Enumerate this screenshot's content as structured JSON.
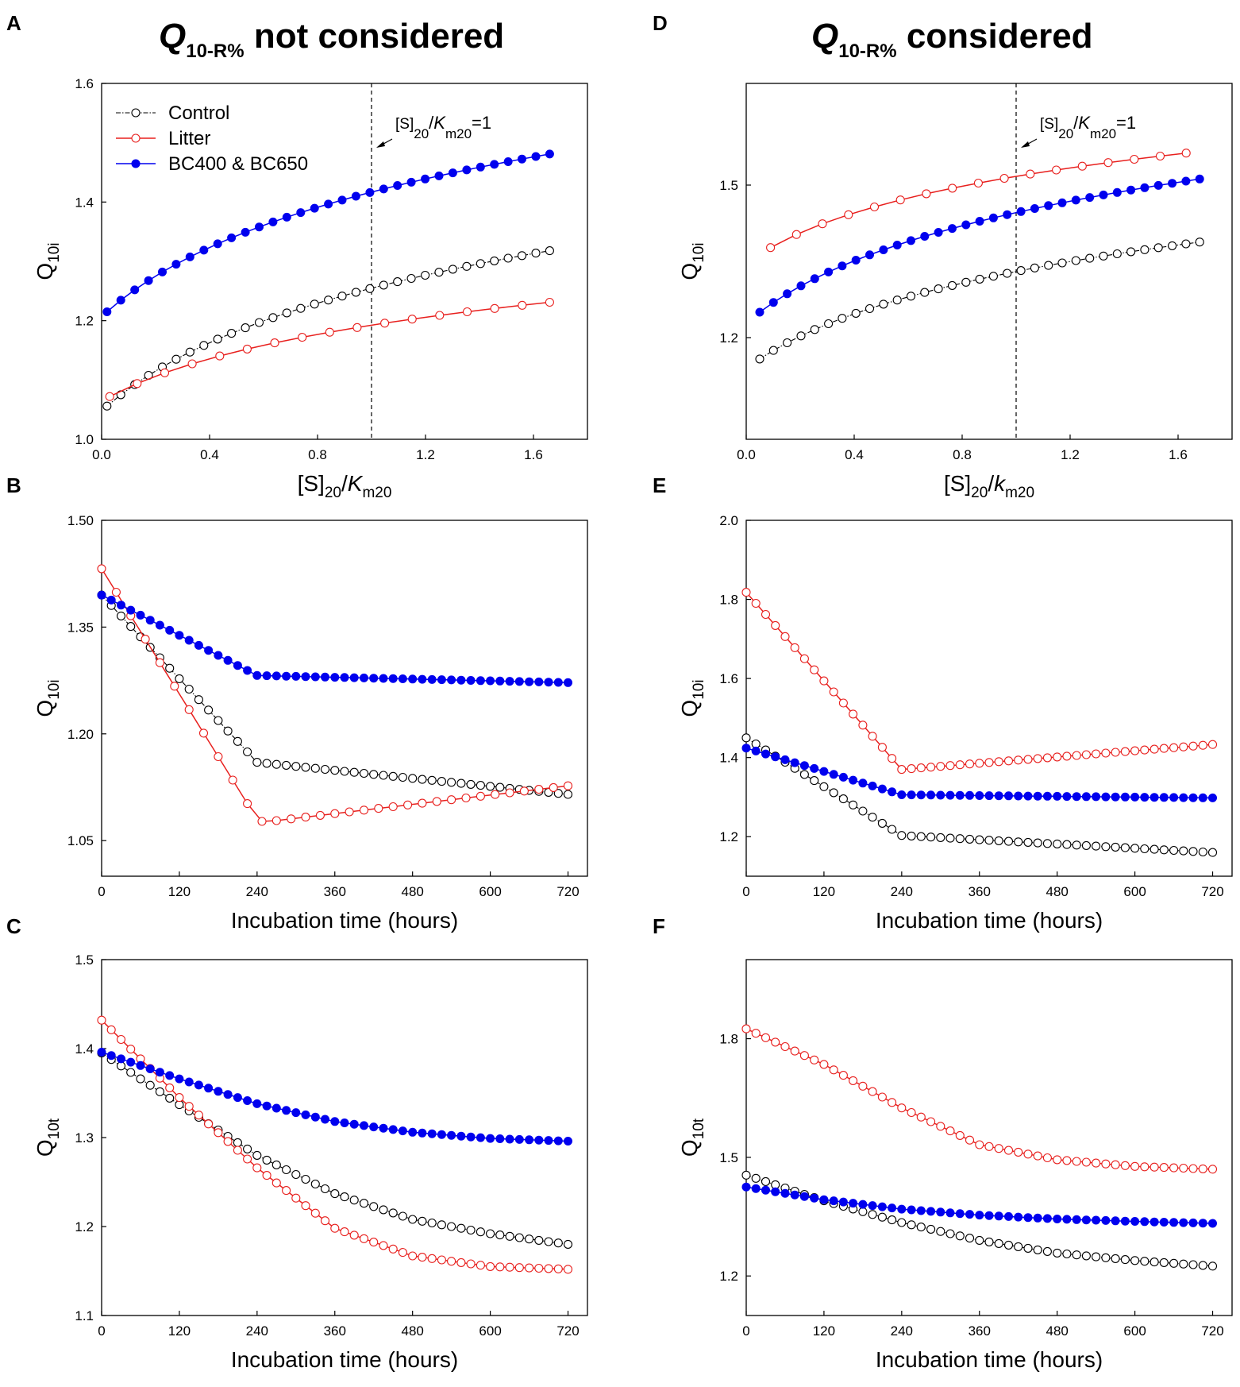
{
  "titles": {
    "left": {
      "q": "Q",
      "sub": "10-R%",
      "rest": " not considered"
    },
    "right": {
      "q": "Q",
      "sub": "10-R%",
      "rest": " considered"
    }
  },
  "legend": {
    "control": "Control",
    "litter": "Litter",
    "bc": "BC400 & BC650"
  },
  "colors": {
    "control": "#000000",
    "litter": "#e8201e",
    "bc": "#0000ee"
  },
  "annotation": {
    "prefix": "[S]",
    "s1": "20",
    "mid": "/",
    "k": "K",
    "s2": "m20",
    "suffix": "=1"
  },
  "xlabels": {
    "a": {
      "pre": "[S]",
      "s1": "20",
      "mid": "/",
      "k": "K",
      "s2": "m20"
    },
    "d": {
      "pre": "[S]",
      "s1": "20",
      "mid": "/",
      "k": "k",
      "s2": "m20"
    },
    "time": "Incubation time (hours)"
  },
  "ylabels": {
    "q10i": {
      "q": "Q",
      "sub": "10i"
    },
    "q10t": {
      "q": "Q",
      "sub": "10t"
    }
  },
  "chart_data": [
    {
      "panel": "A",
      "type": "line",
      "xlim": [
        0,
        1.8
      ],
      "ylim": [
        1.0,
        1.6
      ],
      "xticks": [
        "0.0",
        "0.4",
        "0.8",
        "1.2",
        "1.6"
      ],
      "xtick_values": [
        0,
        0.4,
        0.8,
        1.2,
        1.6
      ],
      "yticks": [
        "1.0",
        "1.2",
        "1.4",
        "1.6"
      ],
      "ytick_values": [
        1.0,
        1.2,
        1.4,
        1.6
      ],
      "vline": 1.0,
      "series": [
        {
          "name": "Control",
          "key": "control",
          "x0": 0.02,
          "x1": 1.66,
          "n": 33,
          "y0": 1.056,
          "y1": 1.318,
          "curve": "log",
          "k": 4
        },
        {
          "name": "Litter",
          "key": "litter",
          "x0": 0.03,
          "x1": 1.66,
          "n": 17,
          "y0": 1.072,
          "y1": 1.231,
          "curve": "log",
          "k": 4
        },
        {
          "name": "BC400 & BC650",
          "key": "bc",
          "x0": 0.02,
          "x1": 1.66,
          "n": 33,
          "y0": 1.215,
          "y1": 1.481,
          "curve": "log",
          "k": 4
        }
      ]
    },
    {
      "panel": "D",
      "type": "line",
      "xlim": [
        0,
        1.8
      ],
      "ylim": [
        1.0,
        1.7
      ],
      "xticks": [
        "0.0",
        "0.4",
        "0.8",
        "1.2",
        "1.6"
      ],
      "xtick_values": [
        0,
        0.4,
        0.8,
        1.2,
        1.6
      ],
      "yticks": [
        "1.2",
        "1.5"
      ],
      "ytick_values": [
        1.2,
        1.5
      ],
      "vline": 1.0,
      "series": [
        {
          "name": "Control",
          "key": "control",
          "x0": 0.05,
          "x1": 1.68,
          "n": 33,
          "y0": 1.158,
          "y1": 1.388,
          "curve": "log",
          "k": 4
        },
        {
          "name": "Litter",
          "key": "litter",
          "x0": 0.09,
          "x1": 1.63,
          "n": 17,
          "y0": 1.377,
          "y1": 1.563,
          "curve": "log",
          "k": 4
        },
        {
          "name": "BC400 & BC650",
          "key": "bc",
          "x0": 0.05,
          "x1": 1.68,
          "n": 33,
          "y0": 1.25,
          "y1": 1.512,
          "curve": "log",
          "k": 4
        }
      ]
    },
    {
      "panel": "B",
      "type": "line",
      "xlim": [
        0,
        750
      ],
      "ylim": [
        1.0,
        1.5
      ],
      "xticks": [
        "0",
        "120",
        "240",
        "360",
        "480",
        "600",
        "720"
      ],
      "xtick_values": [
        0,
        120,
        240,
        360,
        480,
        600,
        720
      ],
      "yticks": [
        "1.05",
        "1.20",
        "1.35",
        "1.50"
      ],
      "ytick_values": [
        1.05,
        1.2,
        1.35,
        1.5
      ],
      "series": [
        {
          "name": "Control",
          "key": "control",
          "n": 49,
          "dx": 15,
          "knots": [
            [
              0,
              1.395
            ],
            [
              240,
              1.16
            ],
            [
              720,
              1.115
            ]
          ]
        },
        {
          "name": "Litter",
          "key": "litter",
          "n": 33,
          "dx": 22.5,
          "knots": [
            [
              0,
              1.432
            ],
            [
              240,
              1.08
            ],
            [
              250,
              1.076
            ],
            [
              720,
              1.127
            ]
          ]
        },
        {
          "name": "BC400 & BC650",
          "key": "bc",
          "n": 49,
          "dx": 15,
          "knots": [
            [
              0,
              1.395
            ],
            [
              240,
              1.282
            ],
            [
              720,
              1.272
            ]
          ]
        }
      ]
    },
    {
      "panel": "E",
      "type": "line",
      "xlim": [
        0,
        750
      ],
      "ylim": [
        1.1,
        2.0
      ],
      "xticks": [
        "0",
        "120",
        "240",
        "360",
        "480",
        "600",
        "720"
      ],
      "xtick_values": [
        0,
        120,
        240,
        360,
        480,
        600,
        720
      ],
      "yticks": [
        "1.2",
        "1.4",
        "1.6",
        "1.8",
        "2.0"
      ],
      "ytick_values": [
        1.2,
        1.4,
        1.6,
        1.8,
        2.0
      ],
      "series": [
        {
          "name": "Control",
          "key": "control",
          "n": 49,
          "dx": 15,
          "knots": [
            [
              0,
              1.45
            ],
            [
              240,
              1.203
            ],
            [
              720,
              1.16
            ]
          ]
        },
        {
          "name": "Litter",
          "key": "litter",
          "n": 49,
          "dx": 15,
          "knots": [
            [
              0,
              1.818
            ],
            [
              240,
              1.37
            ],
            [
              720,
              1.433
            ]
          ]
        },
        {
          "name": "BC400 & BC650",
          "key": "bc",
          "n": 49,
          "dx": 15,
          "knots": [
            [
              0,
              1.424
            ],
            [
              240,
              1.306
            ],
            [
              720,
              1.298
            ]
          ]
        }
      ]
    },
    {
      "panel": "C",
      "type": "line",
      "xlim": [
        0,
        750
      ],
      "ylim": [
        1.1,
        1.5
      ],
      "xticks": [
        "0",
        "120",
        "240",
        "360",
        "480",
        "600",
        "720"
      ],
      "xtick_values": [
        0,
        120,
        240,
        360,
        480,
        600,
        720
      ],
      "yticks": [
        "1.1",
        "1.2",
        "1.3",
        "1.4",
        "1.5"
      ],
      "ytick_values": [
        1.1,
        1.2,
        1.3,
        1.4,
        1.5
      ],
      "series": [
        {
          "name": "Control",
          "key": "control",
          "n": 49,
          "dx": 15,
          "knots": [
            [
              0,
              1.395
            ],
            [
              120,
              1.337
            ],
            [
              240,
              1.28
            ],
            [
              360,
              1.237
            ],
            [
              480,
              1.208
            ],
            [
              600,
              1.192
            ],
            [
              720,
              1.18
            ]
          ]
        },
        {
          "name": "Litter",
          "key": "litter",
          "n": 49,
          "dx": 15,
          "knots": [
            [
              0,
              1.432
            ],
            [
              120,
              1.345
            ],
            [
              240,
              1.266
            ],
            [
              360,
              1.198
            ],
            [
              480,
              1.167
            ],
            [
              600,
              1.155
            ],
            [
              720,
              1.152
            ]
          ]
        },
        {
          "name": "BC400 & BC650",
          "key": "bc",
          "n": 49,
          "dx": 15,
          "knots": [
            [
              0,
              1.396
            ],
            [
              120,
              1.366
            ],
            [
              240,
              1.338
            ],
            [
              360,
              1.318
            ],
            [
              480,
              1.306
            ],
            [
              600,
              1.299
            ],
            [
              720,
              1.296
            ]
          ]
        }
      ]
    },
    {
      "panel": "F",
      "type": "line",
      "xlim": [
        0,
        750
      ],
      "ylim": [
        1.1,
        2.0
      ],
      "xticks": [
        "0",
        "120",
        "240",
        "360",
        "480",
        "600",
        "720"
      ],
      "xtick_values": [
        0,
        120,
        240,
        360,
        480,
        600,
        720
      ],
      "yticks": [
        "1.2",
        "1.5",
        "1.8"
      ],
      "ytick_values": [
        1.2,
        1.5,
        1.8
      ],
      "series": [
        {
          "name": "Control",
          "key": "control",
          "n": 49,
          "dx": 15,
          "knots": [
            [
              0,
              1.455
            ],
            [
              120,
              1.39
            ],
            [
              240,
              1.335
            ],
            [
              360,
              1.29
            ],
            [
              480,
              1.258
            ],
            [
              600,
              1.239
            ],
            [
              720,
              1.225
            ]
          ]
        },
        {
          "name": "Litter",
          "key": "litter",
          "n": 49,
          "dx": 15,
          "knots": [
            [
              0,
              1.825
            ],
            [
              120,
              1.735
            ],
            [
              240,
              1.625
            ],
            [
              360,
              1.532
            ],
            [
              480,
              1.494
            ],
            [
              600,
              1.477
            ],
            [
              720,
              1.47
            ]
          ]
        },
        {
          "name": "BC400 & BC650",
          "key": "bc",
          "n": 49,
          "dx": 15,
          "knots": [
            [
              0,
              1.425
            ],
            [
              120,
              1.393
            ],
            [
              240,
              1.369
            ],
            [
              360,
              1.354
            ],
            [
              480,
              1.344
            ],
            [
              600,
              1.338
            ],
            [
              720,
              1.333
            ]
          ]
        }
      ]
    }
  ]
}
